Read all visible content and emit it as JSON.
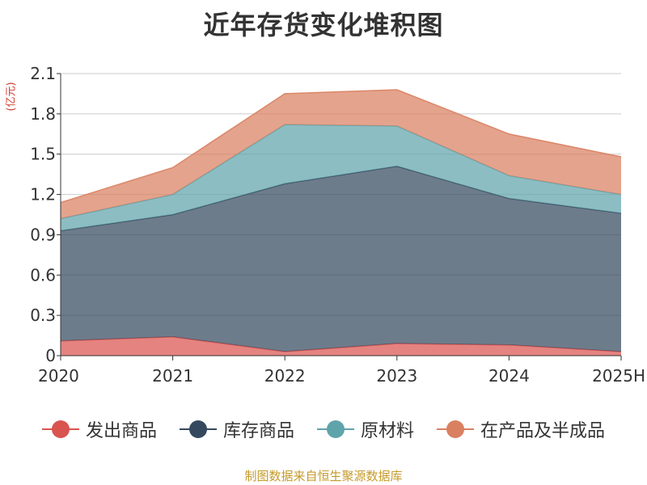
{
  "title": "近年存货变化堆积图",
  "unit_label": "(亿元)",
  "source": "制图数据来自恒生聚源数据库",
  "chart_data": {
    "type": "area",
    "stacked": true,
    "x": [
      "2020",
      "2021",
      "2022",
      "2023",
      "2024",
      "2025H"
    ],
    "ylim": [
      0,
      2.1
    ],
    "yticks": [
      0,
      0.3,
      0.6,
      0.9,
      1.2,
      1.5,
      1.8,
      2.1
    ],
    "ytick_labels": [
      "0",
      "0.3",
      "0.6",
      "0.9",
      "1.2",
      "1.5",
      "1.8",
      "2.1"
    ],
    "grid": true,
    "legend_position": "bottom",
    "series": [
      {
        "name": "发出商品",
        "color": "#d9534f",
        "values": [
          0.11,
          0.14,
          0.03,
          0.09,
          0.08,
          0.03
        ]
      },
      {
        "name": "库存商品",
        "color": "#34495e",
        "values": [
          0.82,
          0.91,
          1.25,
          1.32,
          1.09,
          1.03
        ]
      },
      {
        "name": "原材料",
        "color": "#5fa3ab",
        "values": [
          0.09,
          0.15,
          0.44,
          0.3,
          0.17,
          0.14
        ]
      },
      {
        "name": "在产品及半成品",
        "color": "#d98060",
        "values": [
          0.12,
          0.2,
          0.23,
          0.27,
          0.31,
          0.28
        ]
      }
    ]
  }
}
